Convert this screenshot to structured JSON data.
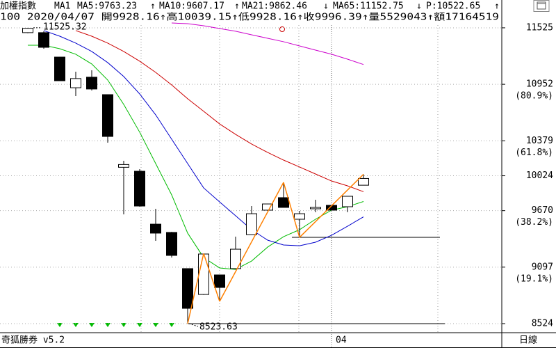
{
  "chart_data": {
    "type": "candlestick",
    "title": "加權指數",
    "indicator": "MA1",
    "info_line": "100 2020/04/07 開9928.16↑高10039.15↑低9928.16↑收9996.39↑量5529043↑額17164519",
    "p_label": {
      "label": "P:10522.65",
      "trend": "↑",
      "color": "#009900"
    },
    "footer_left": "奇狐勝券 v5.2",
    "footer_right": "日線",
    "categories": [
      null,
      null,
      null,
      null,
      null,
      null,
      null,
      null,
      null,
      null,
      null,
      null,
      null,
      null,
      null,
      null,
      null,
      null,
      null,
      "04",
      null,
      null
    ],
    "candles": {
      "open": [
        11476,
        11476,
        11228,
        10917,
        11024,
        10847,
        10110,
        10070,
        9533,
        9449,
        9082,
        8820,
        9018,
        9082,
        9427,
        9675,
        9802,
        9583,
        9689,
        9724,
        9710,
        9928.16
      ],
      "high": [
        11525.32,
        11490,
        11230,
        11080,
        11094,
        10850,
        10176,
        10091,
        9689,
        9455,
        9085,
        9235,
        9020,
        9406,
        9717,
        9740,
        9957,
        9668,
        9781,
        9726,
        9818,
        10039.15
      ],
      "low": [
        11470,
        11313,
        10985,
        10833,
        10889,
        10360,
        9632,
        9710,
        9364,
        9195,
        8523.63,
        8815,
        8750,
        9080,
        9425,
        9670,
        9700,
        9399,
        9654,
        9672,
        9654,
        9928.16
      ],
      "close": [
        11520,
        11327,
        10988,
        11010,
        10904,
        10423,
        10138,
        9717,
        9442,
        9216,
        8679,
        9230,
        8891,
        9279,
        9639,
        9738,
        9703,
        9639,
        9703,
        9675,
        9816,
        9996.39
      ]
    },
    "series": [
      {
        "name": "MA5",
        "label": "MA5:9763.23",
        "trend": "↑",
        "color": "#00bb00",
        "text_color": "#009900",
        "values": [
          11348,
          11348,
          11313,
          11257,
          11158,
          10995,
          10748,
          10466,
          10148,
          9830,
          9442,
          9194,
          9089,
          9074,
          9159,
          9300,
          9406,
          9477,
          9583,
          9675,
          9710,
          9763.23
        ]
      },
      {
        "name": "MA10",
        "label": "MA10:9607.17",
        "trend": "↑",
        "color": "#0000cc",
        "text_color": "#0000cc",
        "values": [
          null,
          11497,
          11440,
          11370,
          11285,
          11172,
          11031,
          10854,
          10642,
          10395,
          10148,
          9901,
          9759,
          9618,
          9477,
          9371,
          9322,
          9314,
          9350,
          9420,
          9512,
          9607.17
        ]
      },
      {
        "name": "MA21",
        "label": "MA21:9862.46",
        "trend": "↓",
        "color": "#cc0000",
        "text_color": "#cc0000",
        "values": [
          null,
          null,
          null,
          11497,
          11440,
          11370,
          11285,
          11186,
          11073,
          10946,
          10805,
          10678,
          10550,
          10444,
          10346,
          10261,
          10183,
          10113,
          10042,
          9971,
          9922,
          9862.46
        ]
      },
      {
        "name": "MA65",
        "label": "MA65:11152.75",
        "trend": "↓",
        "color": "#cc00cc",
        "text_color": "#cc00cc",
        "values": [
          null,
          null,
          null,
          null,
          null,
          null,
          null,
          null,
          null,
          11574,
          11567,
          11546,
          11518,
          11490,
          11454,
          11419,
          11384,
          11341,
          11299,
          11257,
          11207,
          11152.75
        ]
      }
    ],
    "zigzag": {
      "color": "#ff8000",
      "values": [
        null,
        null,
        null,
        null,
        null,
        null,
        null,
        null,
        null,
        null,
        8523.63,
        9235,
        8750,
        null,
        null,
        null,
        9957,
        9399,
        null,
        null,
        null,
        10039.15
      ]
    },
    "levels": [
      8523.63,
      9399
    ],
    "annotations": [
      {
        "label": "11525.32",
        "value": 11525.32
      },
      {
        "label": "8523.63",
        "value": 8523.63
      }
    ],
    "ylim": [
      8432,
      11560
    ],
    "yticks": [
      11525,
      10952,
      10379,
      10024,
      9670,
      9097,
      8524
    ],
    "fib_levels": [
      {
        "value": 10952,
        "label": "(80.9%)"
      },
      {
        "value": 10379,
        "label": "(61.8%)"
      },
      {
        "value": 9670,
        "label": "(38.2%)"
      },
      {
        "value": 9097,
        "label": "(19.1%)"
      }
    ],
    "grid": true
  }
}
